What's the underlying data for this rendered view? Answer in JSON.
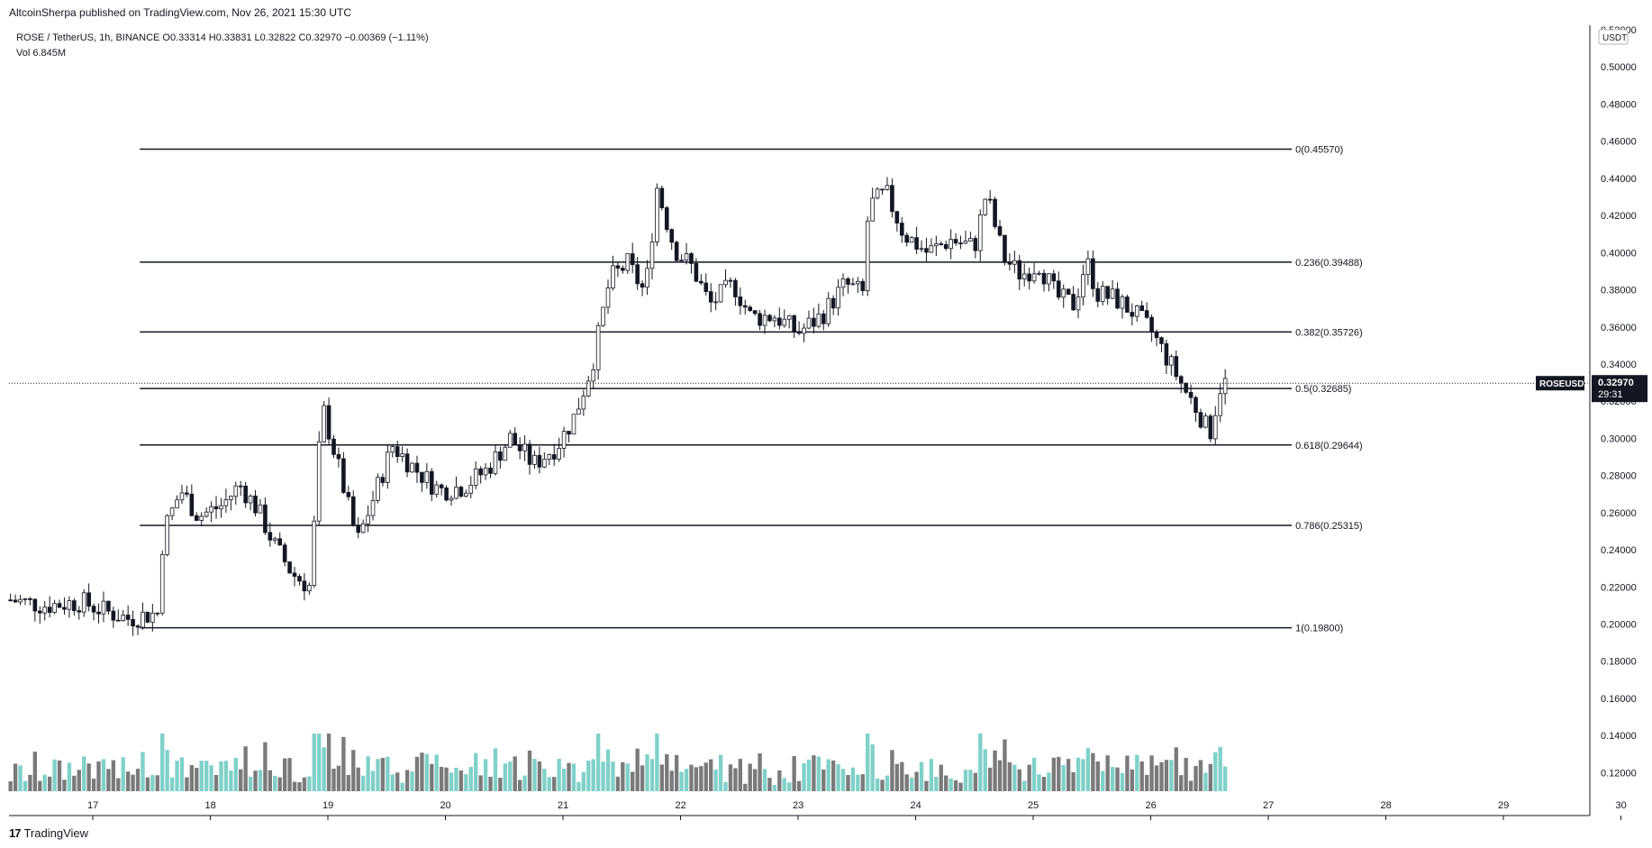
{
  "header": {
    "published": "AltcoinSherpa published on TradingView.com, Nov 26, 2021 15:30 UTC",
    "symbol_line": "ROSE / TetherUS, 1h, BINANCE  O0.33314  H0.33831  L0.32822  C0.32970  −0.00369 (−1.11%)",
    "volume_line": "Vol  6.845M"
  },
  "footer": {
    "logo_mark": "17",
    "logo_text": "TradingView"
  },
  "price_axis": {
    "currency": "USDT",
    "ticks": [
      "0.52000",
      "0.50000",
      "0.48000",
      "0.46000",
      "0.44000",
      "0.42000",
      "0.40000",
      "0.38000",
      "0.36000",
      "0.34000",
      "0.32000",
      "0.30000",
      "0.28000",
      "0.26000",
      "0.24000",
      "0.22000",
      "0.20000",
      "0.18000",
      "0.16000",
      "0.14000",
      "0.12000"
    ],
    "last_price": "0.32970",
    "countdown": "29:31",
    "symbol_tag": "ROSEUSDT"
  },
  "colors": {
    "up": "#26a69a",
    "down": "#ef5350",
    "vol_up": "#7fd1c9",
    "vol_down": "#7a7a7a",
    "line": "#131722",
    "tag_bg": "#131722"
  },
  "chart_data": {
    "type": "candlestick",
    "timeframe": "1h",
    "x_ticks": [
      "17",
      "18",
      "19",
      "20",
      "21",
      "22",
      "23",
      "24",
      "25",
      "26",
      "27",
      "28",
      "29",
      "30"
    ],
    "ylim": [
      0.11,
      0.52
    ],
    "fib_levels": [
      {
        "label": "0(0.45570)",
        "value": 0.4557
      },
      {
        "label": "0.236(0.39488)",
        "value": 0.39488
      },
      {
        "label": "0.382(0.35726)",
        "value": 0.35726
      },
      {
        "label": "0.5(0.32685)",
        "value": 0.32685
      },
      {
        "label": "0.618(0.29644)",
        "value": 0.29644
      },
      {
        "label": "0.786(0.25315)",
        "value": 0.25315
      },
      {
        "label": "1(0.19800)",
        "value": 0.198
      }
    ],
    "price_path": [
      {
        "day": 16.3,
        "close": 0.213
      },
      {
        "day": 16.6,
        "close": 0.21
      },
      {
        "day": 16.9,
        "close": 0.212
      },
      {
        "day": 17.1,
        "close": 0.207
      },
      {
        "day": 17.3,
        "close": 0.203
      },
      {
        "day": 17.55,
        "close": 0.206
      },
      {
        "day": 17.6,
        "close": 0.25
      },
      {
        "day": 17.75,
        "close": 0.272
      },
      {
        "day": 17.9,
        "close": 0.258
      },
      {
        "day": 18.1,
        "close": 0.264
      },
      {
        "day": 18.25,
        "close": 0.275
      },
      {
        "day": 18.4,
        "close": 0.262
      },
      {
        "day": 18.55,
        "close": 0.242
      },
      {
        "day": 18.7,
        "close": 0.227
      },
      {
        "day": 18.85,
        "close": 0.22
      },
      {
        "day": 18.95,
        "close": 0.318
      },
      {
        "day": 19.1,
        "close": 0.282
      },
      {
        "day": 19.25,
        "close": 0.244
      },
      {
        "day": 19.4,
        "close": 0.27
      },
      {
        "day": 19.55,
        "close": 0.296
      },
      {
        "day": 19.75,
        "close": 0.283
      },
      {
        "day": 19.95,
        "close": 0.272
      },
      {
        "day": 20.15,
        "close": 0.274
      },
      {
        "day": 20.35,
        "close": 0.283
      },
      {
        "day": 20.55,
        "close": 0.3
      },
      {
        "day": 20.75,
        "close": 0.286
      },
      {
        "day": 20.95,
        "close": 0.296
      },
      {
        "day": 21.1,
        "close": 0.312
      },
      {
        "day": 21.25,
        "close": 0.34
      },
      {
        "day": 21.4,
        "close": 0.386
      },
      {
        "day": 21.55,
        "close": 0.394
      },
      {
        "day": 21.7,
        "close": 0.378
      },
      {
        "day": 21.8,
        "close": 0.435
      },
      {
        "day": 21.95,
        "close": 0.402
      },
      {
        "day": 22.1,
        "close": 0.392
      },
      {
        "day": 22.25,
        "close": 0.372
      },
      {
        "day": 22.45,
        "close": 0.383
      },
      {
        "day": 22.6,
        "close": 0.365
      },
      {
        "day": 22.8,
        "close": 0.366
      },
      {
        "day": 23.0,
        "close": 0.357
      },
      {
        "day": 23.2,
        "close": 0.366
      },
      {
        "day": 23.4,
        "close": 0.383
      },
      {
        "day": 23.55,
        "close": 0.378
      },
      {
        "day": 23.6,
        "close": 0.425
      },
      {
        "day": 23.75,
        "close": 0.432
      },
      {
        "day": 23.9,
        "close": 0.41
      },
      {
        "day": 24.1,
        "close": 0.4
      },
      {
        "day": 24.3,
        "close": 0.407
      },
      {
        "day": 24.5,
        "close": 0.403
      },
      {
        "day": 24.6,
        "close": 0.432
      },
      {
        "day": 24.75,
        "close": 0.397
      },
      {
        "day": 24.9,
        "close": 0.388
      },
      {
        "day": 25.05,
        "close": 0.394
      },
      {
        "day": 25.2,
        "close": 0.376
      },
      {
        "day": 25.35,
        "close": 0.372
      },
      {
        "day": 25.45,
        "close": 0.396
      },
      {
        "day": 25.55,
        "close": 0.378
      },
      {
        "day": 25.7,
        "close": 0.375
      },
      {
        "day": 25.85,
        "close": 0.368
      },
      {
        "day": 26.0,
        "close": 0.358
      },
      {
        "day": 26.15,
        "close": 0.342
      },
      {
        "day": 26.3,
        "close": 0.325
      },
      {
        "day": 26.4,
        "close": 0.315
      },
      {
        "day": 26.5,
        "close": 0.302
      },
      {
        "day": 26.6,
        "close": 0.33
      },
      {
        "day": 26.65,
        "close": 0.3297
      }
    ]
  }
}
